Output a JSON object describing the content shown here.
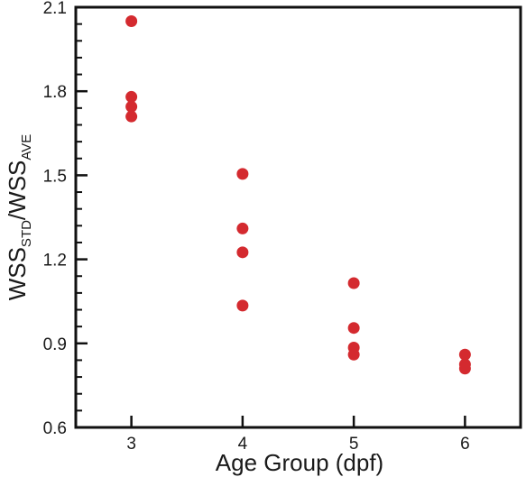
{
  "chart_data": {
    "type": "scatter",
    "xlabel": "Age Group (dpf)",
    "ylabel": {
      "parts": [
        "WSS",
        "STD",
        "/WSS",
        "AVE"
      ]
    },
    "x_ticks": [
      "3",
      "4",
      "5",
      "6"
    ],
    "y_ticks": [
      "0.6",
      "0.9",
      "1.2",
      "1.5",
      "1.8",
      "2.1"
    ],
    "xlim": [
      2.5,
      6.5
    ],
    "ylim": [
      0.6,
      2.1
    ],
    "grid": false,
    "legend": "none",
    "series": [
      {
        "color": "#d42a2f",
        "points": [
          {
            "x": 3,
            "y": 2.05
          },
          {
            "x": 3,
            "y": 1.78
          },
          {
            "x": 3,
            "y": 1.745
          },
          {
            "x": 3,
            "y": 1.71
          },
          {
            "x": 4,
            "y": 1.505
          },
          {
            "x": 4,
            "y": 1.31
          },
          {
            "x": 4,
            "y": 1.225
          },
          {
            "x": 4,
            "y": 1.035
          },
          {
            "x": 5,
            "y": 1.115
          },
          {
            "x": 5,
            "y": 0.955
          },
          {
            "x": 5,
            "y": 0.885
          },
          {
            "x": 5,
            "y": 0.86
          },
          {
            "x": 6,
            "y": 0.86
          },
          {
            "x": 6,
            "y": 0.825
          },
          {
            "x": 6,
            "y": 0.81
          }
        ]
      }
    ]
  }
}
